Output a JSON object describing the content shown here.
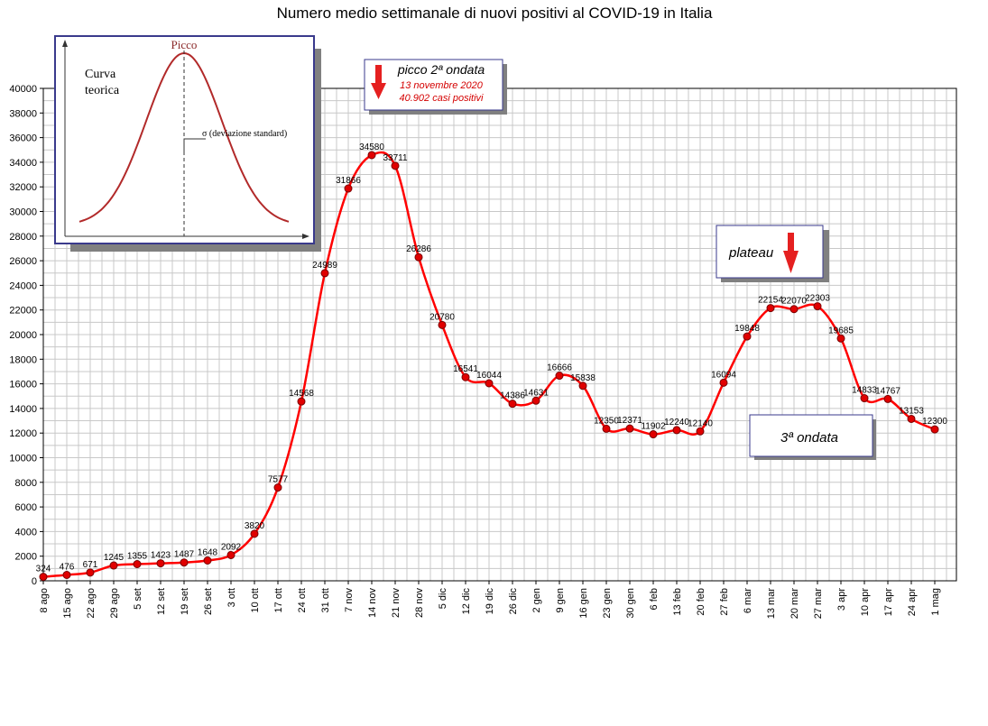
{
  "chart_data": {
    "type": "line",
    "title": "Numero medio settimanale di nuovi positivi al COVID-19 in Italia",
    "xlabel": "",
    "ylabel": "",
    "ylim": [
      0,
      40000
    ],
    "yticks": [
      0,
      2000,
      4000,
      6000,
      8000,
      10000,
      12000,
      14000,
      16000,
      18000,
      20000,
      22000,
      24000,
      26000,
      28000,
      30000,
      32000,
      34000,
      36000,
      38000,
      40000
    ],
    "grid": true,
    "categories": [
      "8 ago",
      "15 ago",
      "22 ago",
      "29 ago",
      "5 set",
      "12 set",
      "19 set",
      "26 set",
      "3 ott",
      "10 ott",
      "17 ott",
      "24 ott",
      "31 ott",
      "7 nov",
      "14 nov",
      "21 nov",
      "28 nov",
      "5 dic",
      "12 dic",
      "19 dic",
      "26 dic",
      "2 gen",
      "9 gen",
      "16 gen",
      "23 gen",
      "30 gen",
      "6 feb",
      "13 feb",
      "20 feb",
      "27 feb",
      "6 mar",
      "13 mar",
      "20 mar",
      "27 mar",
      "3 apr",
      "10 apr",
      "17 apr",
      "24 apr",
      "1 mag"
    ],
    "series": [
      {
        "color": "#ff0000",
        "values": [
          324,
          476,
          671,
          1245,
          1355,
          1423,
          1487,
          1648,
          2092,
          3820,
          7577,
          14568,
          24989,
          31866,
          34580,
          33711,
          26286,
          20780,
          16541,
          16044,
          14386,
          14631,
          16666,
          15838,
          12350,
          12371,
          11902,
          12240,
          12140,
          16094,
          19848,
          22154,
          22070,
          22303,
          19685,
          14833,
          14767,
          13153,
          12300
        ]
      }
    ],
    "data_labels": [
      "324",
      "476",
      "671",
      "1245",
      "1355",
      "1423",
      "1487",
      "1648",
      "2092",
      "3820",
      "7577",
      "14568",
      "24989",
      "31866",
      "34580",
      "33711",
      "26286",
      "20780",
      "16541",
      "16044",
      "14386",
      "14631",
      "16666",
      "15838",
      "12350",
      "12371",
      "11902",
      "12240",
      "12140",
      "16094",
      "19848",
      "22154",
      "22070",
      "22303",
      "19685",
      "14833",
      "14767",
      "13153",
      "12300"
    ]
  },
  "annotations": {
    "peak_box": {
      "line1": "picco 2ª ondata",
      "line2": "13 novembre 2020",
      "line3": "40.902 casi positivi"
    },
    "plateau_box": {
      "text": "plateau"
    },
    "wave_box": {
      "text": "3ª ondata"
    }
  },
  "inset": {
    "peak_label": "Picco",
    "curve_label_1": "Curva",
    "curve_label_2": "teorica",
    "sigma_label": "σ  (deviazione standard)"
  },
  "colors": {
    "line": "#ff0000",
    "marker_fill": "#e00000",
    "arrow": "#e52020",
    "inset_border": "#3a3a8c",
    "inset_curve": "#b22a2a",
    "grid": "#c8c8c8"
  }
}
